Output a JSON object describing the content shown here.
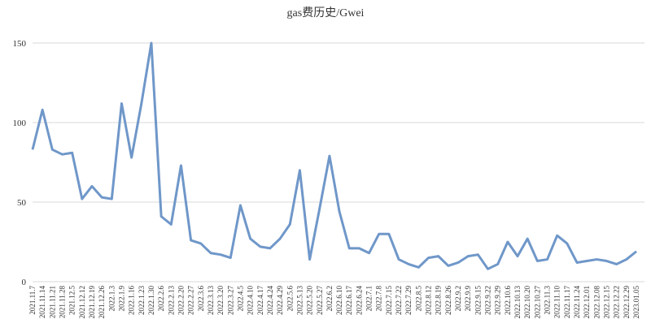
{
  "chart_data": {
    "type": "line",
    "title": "gas费历史/Gwei",
    "categories": [
      "2021.11.7",
      "2021.11.14",
      "2021.11.21",
      "2021.11.28",
      "2021.12.5",
      "2021.12.12",
      "2021.12.19",
      "2021.12.26",
      "2022.1.3",
      "2022.1.9",
      "2022.1.16",
      "2022.1.23",
      "2022.1.30",
      "2022.2.6",
      "2022.2.13",
      "2022.2.20",
      "2022.2.27",
      "2022.3.6",
      "2022.3.13",
      "2022.3.20",
      "2022.3.27",
      "2022.4.5",
      "2022.4.10",
      "2022.4.17",
      "2022.4.24",
      "2022.4.29",
      "2022.5.6",
      "2022.5.13",
      "2022.5.20",
      "2022.5.27",
      "2022.6.2",
      "2022.6.10",
      "2022.6.17",
      "2022.6.24",
      "2022.7.1",
      "2022.7.8",
      "2022.7.15",
      "2022.7.22",
      "2022.7.29",
      "2022.8.5",
      "2022.8.12",
      "2022.8.19",
      "2022.8.26",
      "2022.9.2",
      "2022.9.9",
      "2022.9.15",
      "2022.9.22",
      "2022.9.29",
      "2022.10.6",
      "2022.10.13",
      "2022.10.20",
      "2022.10.27",
      "2022.11.3",
      "2022.11.10",
      "2022.11.17",
      "2022.11.24",
      "2022.12.01",
      "2022.12.08",
      "2022.12.15",
      "2022.12.22",
      "2022.12.29",
      "2023.01.05"
    ],
    "values": [
      83,
      108,
      83,
      80,
      81,
      52,
      60,
      53,
      52,
      112,
      78,
      112,
      150,
      41,
      36,
      73,
      26,
      24,
      18,
      17,
      15,
      48,
      27,
      22,
      21,
      27,
      36,
      70,
      14,
      46,
      79,
      44,
      21,
      21,
      18,
      30,
      30,
      14,
      11,
      9,
      15,
      16,
      10,
      12,
      16,
      17,
      8,
      11,
      25,
      16,
      27,
      13,
      14,
      29,
      24,
      12,
      13,
      14,
      13,
      11,
      14,
      19
    ],
    "color": "#6f97c9",
    "ylim": [
      0,
      150
    ],
    "yticks": [
      0,
      50,
      100,
      150
    ],
    "grid": true
  }
}
